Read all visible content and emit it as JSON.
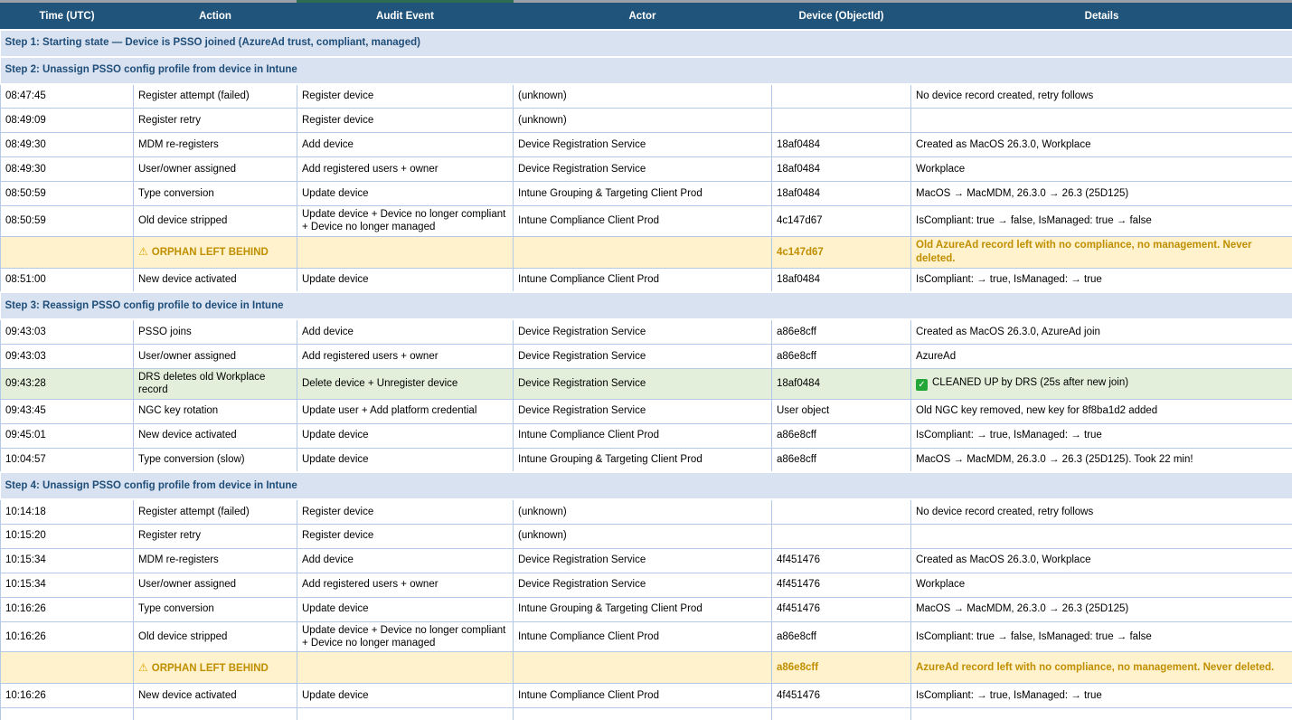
{
  "colors": {
    "header_bg": "#21547A",
    "step_bg": "#D9E2F1",
    "step_text": "#1F4E79",
    "orphan_bg": "#FFF2CC",
    "orphan_text": "#BF8F00",
    "cleanup_bg": "#E3EFDB",
    "grid_border": "#B3C9E6",
    "selection_green": "#2E6B50",
    "top_strip_gray": "#9AA0A6"
  },
  "icons": {
    "warning": "⚠",
    "check": "✓"
  },
  "table": {
    "columns": [
      {
        "key": "time",
        "label": "Time (UTC)"
      },
      {
        "key": "action",
        "label": "Action"
      },
      {
        "key": "audit_event",
        "label": "Audit Event"
      },
      {
        "key": "actor",
        "label": "Actor"
      },
      {
        "key": "device",
        "label": "Device (ObjectId)"
      },
      {
        "key": "details",
        "label": "Details"
      }
    ],
    "sections": [
      {
        "title": "Step 1: Starting state — Device is PSSO joined (AzureAd trust, compliant, managed)",
        "rows": []
      },
      {
        "title": "Step 2: Unassign PSSO config profile from device in Intune",
        "rows": [
          {
            "type": "event",
            "time": "08:47:45",
            "action": "Register attempt (failed)",
            "audit_event": "Register device",
            "actor": "(unknown)",
            "device": "",
            "details": "No device record created, retry follows"
          },
          {
            "type": "event",
            "time": "08:49:09",
            "action": "Register retry",
            "audit_event": "Register device",
            "actor": "(unknown)",
            "device": "",
            "details": ""
          },
          {
            "type": "event",
            "time": "08:49:30",
            "action": "MDM re-registers",
            "audit_event": "Add device",
            "actor": "Device Registration Service",
            "device": "18af0484",
            "details": "Created as MacOS 26.3.0, Workplace"
          },
          {
            "type": "event",
            "time": "08:49:30",
            "action": "User/owner assigned",
            "audit_event": "Add registered users + owner",
            "actor": "Device Registration Service",
            "device": "18af0484",
            "details": "Workplace"
          },
          {
            "type": "event",
            "time": "08:50:59",
            "action": "Type conversion",
            "audit_event": "Update device",
            "actor": "Intune Grouping & Targeting Client Prod",
            "device": "18af0484",
            "details": "MacOS → MacMDM, 26.3.0 → 26.3 (25D125)"
          },
          {
            "type": "event",
            "time": "08:50:59",
            "action": "Old device stripped",
            "audit_event": "Update device + Device no longer compliant + Device no longer managed",
            "actor": "Intune Compliance Client Prod",
            "device": "4c147d67",
            "details": "IsCompliant: true → false, IsManaged: true → false"
          },
          {
            "type": "orphan",
            "action_icon": "warning",
            "time": "",
            "action": "ORPHAN LEFT BEHIND",
            "audit_event": "",
            "actor": "",
            "device": "4c147d67",
            "details": "Old AzureAd record left with no compliance, no management. Never deleted."
          },
          {
            "type": "event",
            "time": "08:51:00",
            "action": "New device activated",
            "audit_event": "Update device",
            "actor": "Intune Compliance Client Prod",
            "device": "18af0484",
            "details": "IsCompliant: → true, IsManaged: → true"
          }
        ]
      },
      {
        "title": "Step 3: Reassign PSSO config profile to device in Intune",
        "rows": [
          {
            "type": "event",
            "time": "09:43:03",
            "action": "PSSO joins",
            "audit_event": "Add device",
            "actor": "Device Registration Service",
            "device": "a86e8cff",
            "details": "Created as MacOS 26.3.0, AzureAd join"
          },
          {
            "type": "event",
            "time": "09:43:03",
            "action": "User/owner assigned",
            "audit_event": "Add registered users + owner",
            "actor": "Device Registration Service",
            "device": "a86e8cff",
            "details": "AzureAd"
          },
          {
            "type": "cleanup",
            "details_icon": "check",
            "time": "09:43:28",
            "action": "DRS deletes old Workplace record",
            "audit_event": "Delete device + Unregister device",
            "actor": "Device Registration Service",
            "device": "18af0484",
            "details": "CLEANED UP by DRS (25s after new join)"
          },
          {
            "type": "event",
            "time": "09:43:45",
            "action": "NGC key rotation",
            "audit_event": "Update user + Add platform credential",
            "actor": "Device Registration Service",
            "device": "User object",
            "details": "Old NGC key removed, new key for 8f8ba1d2 added"
          },
          {
            "type": "event",
            "time": "09:45:01",
            "action": "New device activated",
            "audit_event": "Update device",
            "actor": "Intune Compliance Client Prod",
            "device": "a86e8cff",
            "details": "IsCompliant: → true, IsManaged: → true"
          },
          {
            "type": "event",
            "time": "10:04:57",
            "action": "Type conversion (slow)",
            "audit_event": "Update device",
            "actor": "Intune Grouping & Targeting Client Prod",
            "device": "a86e8cff",
            "details": "MacOS → MacMDM, 26.3.0 → 26.3 (25D125). Took 22 min!"
          }
        ]
      },
      {
        "title": "Step 4: Unassign PSSO config profile from device in Intune",
        "rows": [
          {
            "type": "event",
            "time": "10:14:18",
            "action": "Register attempt (failed)",
            "audit_event": "Register device",
            "actor": "(unknown)",
            "device": "",
            "details": "No device record created, retry follows"
          },
          {
            "type": "event",
            "time": "10:15:20",
            "action": "Register retry",
            "audit_event": "Register device",
            "actor": "(unknown)",
            "device": "",
            "details": ""
          },
          {
            "type": "event",
            "time": "10:15:34",
            "action": "MDM re-registers",
            "audit_event": "Add device",
            "actor": "Device Registration Service",
            "device": "4f451476",
            "details": "Created as MacOS 26.3.0, Workplace"
          },
          {
            "type": "event",
            "time": "10:15:34",
            "action": "User/owner assigned",
            "audit_event": "Add registered users + owner",
            "actor": "Device Registration Service",
            "device": "4f451476",
            "details": "Workplace"
          },
          {
            "type": "event",
            "time": "10:16:26",
            "action": "Type conversion",
            "audit_event": "Update device",
            "actor": "Intune Grouping & Targeting Client Prod",
            "device": "4f451476",
            "details": "MacOS → MacMDM, 26.3.0 → 26.3 (25D125)"
          },
          {
            "type": "event",
            "time": "10:16:26",
            "action": "Old device stripped",
            "audit_event": "Update device + Device no longer compliant + Device no longer managed",
            "actor": "Intune Compliance Client Prod",
            "device": "a86e8cff",
            "details": "IsCompliant: true → false, IsManaged: true → false"
          },
          {
            "type": "orphan",
            "action_icon": "warning",
            "time": "",
            "action": "ORPHAN LEFT BEHIND",
            "audit_event": "",
            "actor": "",
            "device": "a86e8cff",
            "details": "AzureAd record left with no compliance, no management. Never deleted."
          },
          {
            "type": "event",
            "time": "10:16:26",
            "action": "New device activated",
            "audit_event": "Update device",
            "actor": "Intune Compliance Client Prod",
            "device": "4f451476",
            "details": "IsCompliant: → true, IsManaged: → true"
          }
        ]
      }
    ],
    "trailing_empty_row": true
  }
}
